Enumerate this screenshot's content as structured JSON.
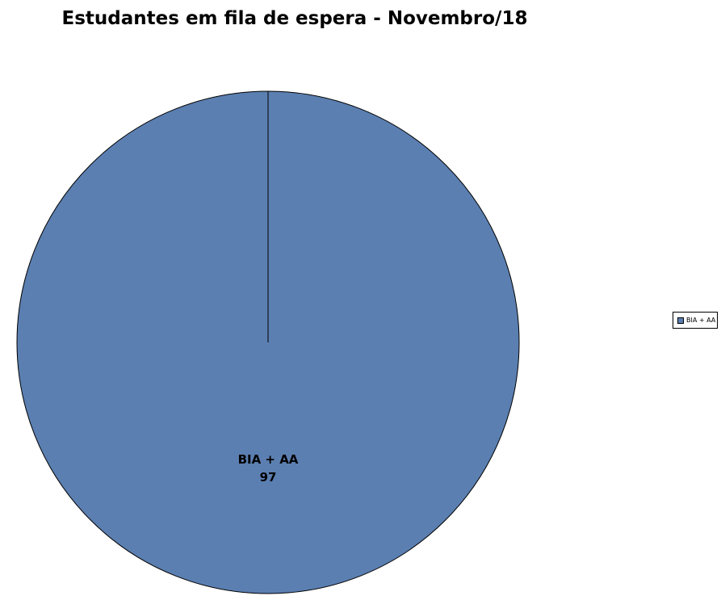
{
  "chart_data": {
    "type": "pie",
    "title": "Estudantes em fila de espera - Novembro/18",
    "slices": [
      {
        "label": "BIA + AA",
        "value": 97,
        "color": "#5b7fb1"
      }
    ],
    "legend_position": "right"
  }
}
